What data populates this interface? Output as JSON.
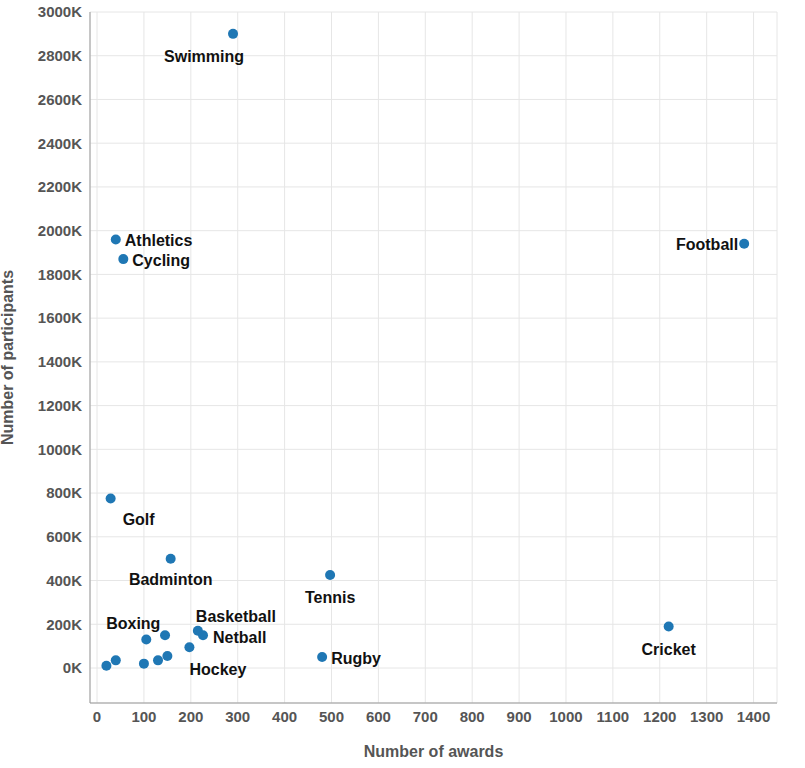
{
  "chart_data": {
    "type": "scatter",
    "x_label": "Number of awards",
    "y_label": "Number of participants",
    "x": [
      290,
      40,
      56,
      1380,
      29,
      157,
      497,
      1219,
      480,
      215,
      226,
      197,
      105,
      20,
      40,
      100,
      130,
      145,
      150
    ],
    "values": [
      2900000,
      1960000,
      1870000,
      1940000,
      775000,
      500000,
      425000,
      190000,
      50000,
      170000,
      150000,
      95000,
      130000,
      10000,
      35000,
      20000,
      35000,
      150000,
      55000
    ],
    "point_labels": [
      "Swimming",
      "Athletics",
      "Cycling",
      "Football",
      "Golf",
      "Badminton",
      "Tennis",
      "Cricket",
      "Rugby",
      "Basketball",
      "Netball",
      "Hockey",
      "Boxing",
      null,
      null,
      null,
      null,
      null,
      null
    ],
    "color": "#1f77b4",
    "marker": "circle",
    "xlim": [
      -15,
      1450
    ],
    "ylim": [
      -160000,
      3000000
    ],
    "xticks": [
      0,
      100,
      200,
      300,
      400,
      500,
      600,
      700,
      800,
      900,
      1000,
      1100,
      1200,
      1300,
      1400
    ],
    "yticks": [
      {
        "value": 0,
        "label": "0K"
      },
      {
        "value": 200000,
        "label": "200K"
      },
      {
        "value": 400000,
        "label": "400K"
      },
      {
        "value": 600000,
        "label": "600K"
      },
      {
        "value": 800000,
        "label": "800K"
      },
      {
        "value": 1000000,
        "label": "1000K"
      },
      {
        "value": 1200000,
        "label": "1200K"
      },
      {
        "value": 1400000,
        "label": "1400K"
      },
      {
        "value": 1600000,
        "label": "1600K"
      },
      {
        "value": 1800000,
        "label": "1800K"
      },
      {
        "value": 2000000,
        "label": "2000K"
      },
      {
        "value": 2200000,
        "label": "2200K"
      },
      {
        "value": 2400000,
        "label": "2400K"
      },
      {
        "value": 2600000,
        "label": "2600K"
      },
      {
        "value": 2800000,
        "label": "2800K"
      },
      {
        "value": 3000000,
        "label": "3000K"
      }
    ],
    "grid": true
  }
}
